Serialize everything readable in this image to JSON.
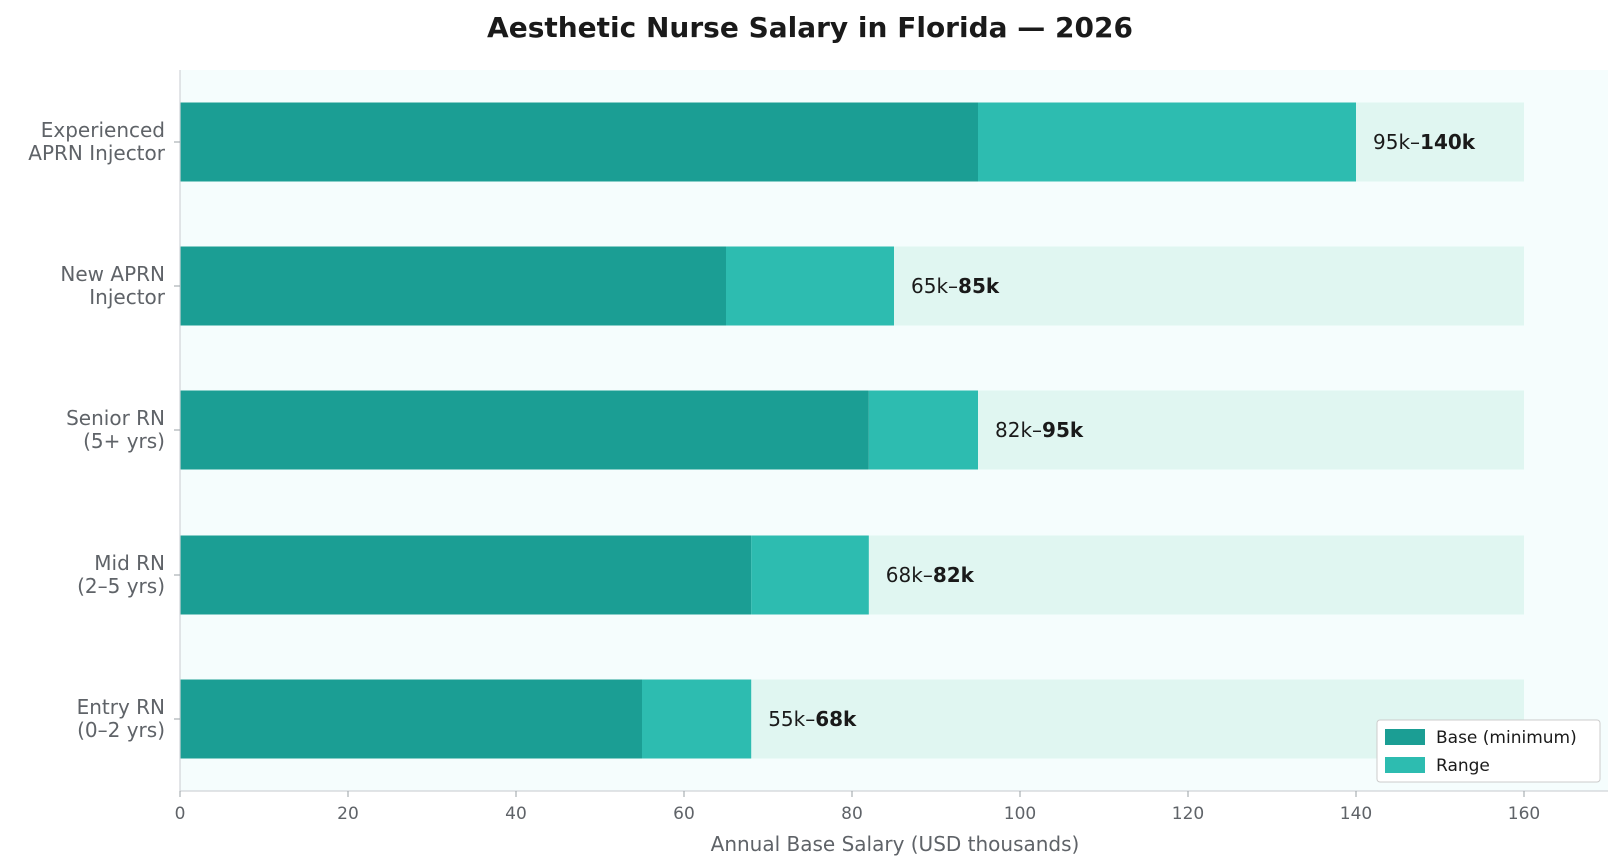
{
  "chart_data": {
    "type": "bar",
    "orientation": "horizontal",
    "stacked": true,
    "title": "Aesthetic Nurse Salary in Florida — 2026",
    "xlabel": "Annual Base Salary (USD thousands)",
    "ylabel": "",
    "xlim": [
      0,
      170
    ],
    "xticks": [
      0,
      20,
      40,
      60,
      80,
      100,
      120,
      140,
      160
    ],
    "background_track_max": 160,
    "categories": [
      {
        "lines": [
          "Experienced",
          "APRN Injector"
        ],
        "min": 95,
        "max": 140,
        "label_prefix": "95k–",
        "label_bold": "140k"
      },
      {
        "lines": [
          "New APRN",
          "Injector"
        ],
        "min": 65,
        "max": 85,
        "label_prefix": "65k–",
        "label_bold": "85k"
      },
      {
        "lines": [
          "Senior RN",
          "(5+ yrs)"
        ],
        "min": 82,
        "max": 95,
        "label_prefix": "82k–",
        "label_bold": "95k"
      },
      {
        "lines": [
          "Mid RN",
          "(2–5 yrs)"
        ],
        "min": 68,
        "max": 82,
        "label_prefix": "68k–",
        "label_bold": "82k"
      },
      {
        "lines": [
          "Entry RN",
          "(0–2 yrs)"
        ],
        "min": 55,
        "max": 68,
        "label_prefix": "55k–",
        "label_bold": "68k"
      }
    ],
    "series": [
      {
        "name": "Base (minimum)",
        "color": "#1b9e94"
      },
      {
        "name": "Range",
        "color": "#2dbcb0"
      }
    ],
    "track_color": "#e0f6f1",
    "plot_bg": "#f5fdfd",
    "legend_position": "bottom-right",
    "grid": false
  }
}
